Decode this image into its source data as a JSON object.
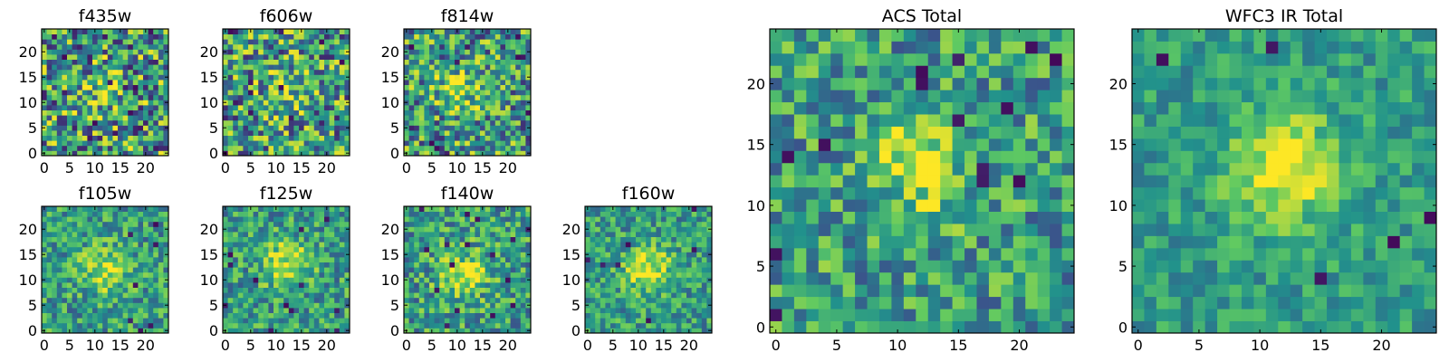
{
  "figure": {
    "colormap": "viridis",
    "colors": [
      "#440154",
      "#3b528b",
      "#21918c",
      "#5ec962",
      "#fde725"
    ]
  },
  "chart_data": [
    {
      "type": "heatmap",
      "title": "f435w",
      "xticks": [
        "0",
        "5",
        "10",
        "15",
        "20"
      ],
      "yticks": [
        "0",
        "5",
        "10",
        "15",
        "20"
      ],
      "xlim": [
        0,
        25
      ],
      "ylim": [
        0,
        25
      ],
      "grid_size": 25,
      "peak": [
        12,
        12
      ],
      "peak_level": 0.2,
      "noise_level": 0.9
    },
    {
      "type": "heatmap",
      "title": "f606w",
      "xticks": [
        "0",
        "5",
        "10",
        "15",
        "20"
      ],
      "yticks": [
        "0",
        "5",
        "10",
        "15",
        "20"
      ],
      "xlim": [
        0,
        25
      ],
      "ylim": [
        0,
        25
      ],
      "grid_size": 25,
      "peak": [
        12,
        12
      ],
      "peak_level": 0.5,
      "noise_level": 0.85
    },
    {
      "type": "heatmap",
      "title": "f814w",
      "xticks": [
        "0",
        "5",
        "10",
        "15",
        "20"
      ],
      "yticks": [
        "0",
        "5",
        "10",
        "15",
        "20"
      ],
      "xlim": [
        0,
        25
      ],
      "ylim": [
        0,
        25
      ],
      "grid_size": 25,
      "peak": [
        11,
        13
      ],
      "peak_level": 0.6,
      "noise_level": 0.8
    },
    {
      "type": "heatmap",
      "title": "f105w",
      "xticks": [
        "0",
        "5",
        "10",
        "15",
        "20"
      ],
      "yticks": [
        "0",
        "5",
        "10",
        "15",
        "20"
      ],
      "xlim": [
        0,
        25
      ],
      "ylim": [
        0,
        25
      ],
      "grid_size": 25,
      "peak": [
        12,
        12
      ],
      "peak_level": 0.85,
      "noise_level": 0.55
    },
    {
      "type": "heatmap",
      "title": "f125w",
      "xticks": [
        "0",
        "5",
        "10",
        "15",
        "20"
      ],
      "yticks": [
        "0",
        "5",
        "10",
        "15",
        "20"
      ],
      "xlim": [
        0,
        25
      ],
      "ylim": [
        0,
        25
      ],
      "grid_size": 25,
      "peak": [
        12,
        13
      ],
      "peak_level": 0.85,
      "noise_level": 0.55
    },
    {
      "type": "heatmap",
      "title": "f140w",
      "xticks": [
        "0",
        "5",
        "10",
        "15",
        "20"
      ],
      "yticks": [
        "0",
        "5",
        "10",
        "15",
        "20"
      ],
      "xlim": [
        0,
        25
      ],
      "ylim": [
        0,
        25
      ],
      "grid_size": 25,
      "peak": [
        11,
        11
      ],
      "peak_level": 0.8,
      "noise_level": 0.6
    },
    {
      "type": "heatmap",
      "title": "f160w",
      "xticks": [
        "0",
        "5",
        "10",
        "15",
        "20"
      ],
      "yticks": [
        "0",
        "5",
        "10",
        "15",
        "20"
      ],
      "xlim": [
        0,
        25
      ],
      "ylim": [
        0,
        25
      ],
      "grid_size": 25,
      "peak": [
        12,
        12
      ],
      "peak_level": 0.9,
      "noise_level": 0.5
    },
    {
      "type": "heatmap",
      "title": "ACS Total",
      "xticks": [
        "0",
        "5",
        "10",
        "15",
        "20"
      ],
      "yticks": [
        "0",
        "5",
        "10",
        "15",
        "20"
      ],
      "xlim": [
        0,
        25
      ],
      "ylim": [
        0,
        25
      ],
      "grid_size": 25,
      "peak": [
        12,
        13
      ],
      "peak_level": 0.7,
      "noise_level": 0.6
    },
    {
      "type": "heatmap",
      "title": "WFC3 IR Total",
      "xticks": [
        "0",
        "5",
        "10",
        "15",
        "20"
      ],
      "yticks": [
        "0",
        "5",
        "10",
        "15",
        "20"
      ],
      "xlim": [
        0,
        25
      ],
      "ylim": [
        0,
        25
      ],
      "grid_size": 25,
      "peak": [
        12,
        13
      ],
      "peak_level": 1.0,
      "noise_level": 0.35
    }
  ]
}
